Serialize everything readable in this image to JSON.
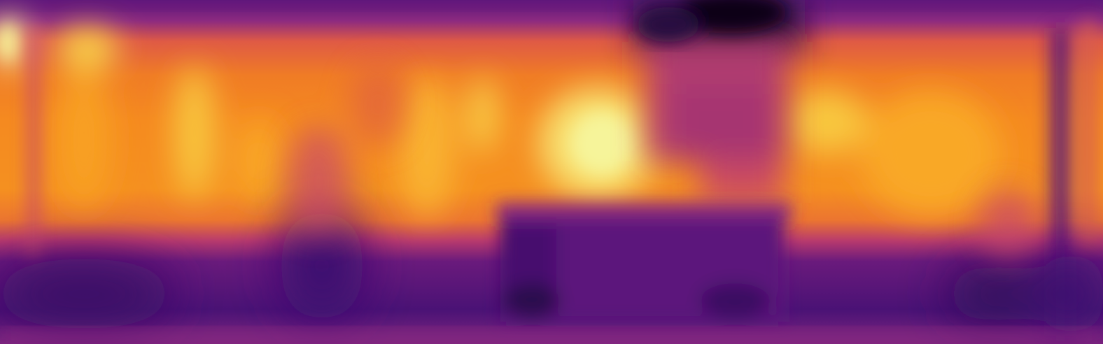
{
  "image": {
    "kind": "depth-heatmap",
    "colormap": "inferno",
    "colors": {
      "background_dark": "#200a3a",
      "deep_purple": "#3b0f6f",
      "purple": "#5a157a",
      "magenta": "#8c2a80",
      "red_magenta": "#b83a6d",
      "orange_red": "#df5a45",
      "orange": "#f07c25",
      "bright_orange": "#fb9f1a",
      "yellow": "#f8d14a",
      "pale_yellow": "#f6f49a"
    }
  }
}
